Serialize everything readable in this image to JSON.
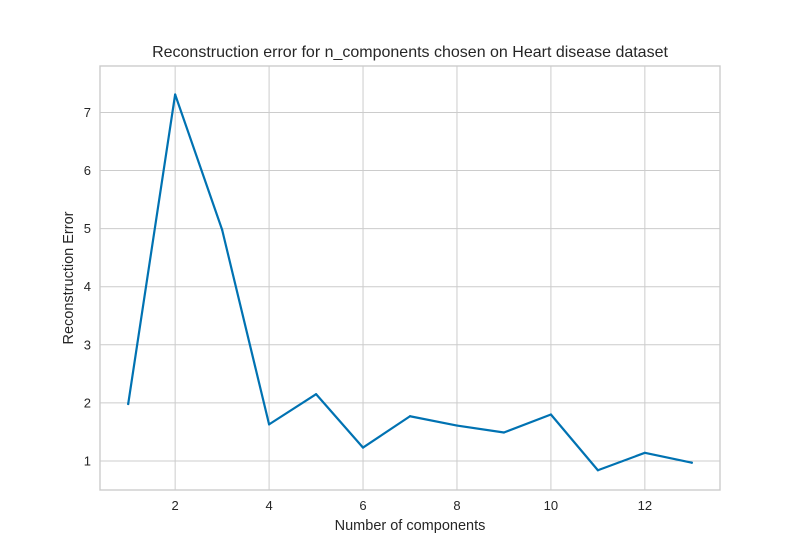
{
  "chart_data": {
    "type": "line",
    "title": "Reconstruction error for n_components chosen on Heart disease dataset",
    "xlabel": "Number of components",
    "ylabel": "Reconstruction Error",
    "xlim": [
      0.4,
      13.6
    ],
    "ylim": [
      0.5,
      7.8
    ],
    "xticks": [
      2,
      4,
      6,
      8,
      10,
      12
    ],
    "yticks": [
      1,
      2,
      3,
      4,
      5,
      6,
      7
    ],
    "grid": true,
    "series": [
      {
        "color": "#0072b2",
        "x": [
          1,
          2,
          3,
          4,
          5,
          6,
          7,
          8,
          9,
          10,
          11,
          12,
          13
        ],
        "y": [
          1.98,
          7.31,
          4.98,
          1.63,
          2.15,
          1.23,
          1.77,
          1.61,
          1.49,
          1.8,
          0.84,
          1.14,
          0.97
        ]
      }
    ]
  }
}
